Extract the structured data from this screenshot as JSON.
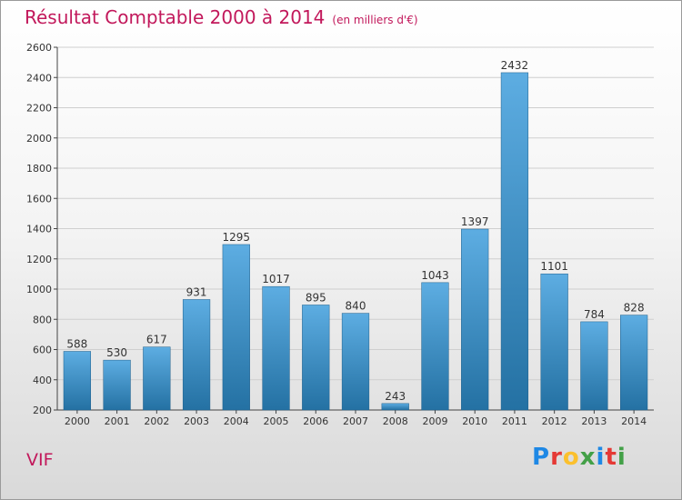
{
  "header": {
    "title": "Résultat Comptable 2000 à 2014",
    "subtitle": "(en milliers d'€)"
  },
  "commune": "VIF",
  "brand": [
    "P",
    "r",
    "o",
    "x",
    "i",
    "t",
    "i"
  ],
  "colors": {
    "title": "#c2185b",
    "bar_top": "#5dade2",
    "bar_bottom": "#2471a3"
  },
  "chart_data": {
    "type": "bar",
    "title": "Résultat Comptable 2000 à 2014",
    "subtitle": "(en milliers d'€)",
    "xlabel": "",
    "ylabel": "",
    "categories": [
      "2000",
      "2001",
      "2002",
      "2003",
      "2004",
      "2005",
      "2006",
      "2007",
      "2008",
      "2009",
      "2010",
      "2011",
      "2012",
      "2013",
      "2014"
    ],
    "values": [
      588,
      530,
      617,
      931,
      1295,
      1017,
      895,
      840,
      243,
      1043,
      1397,
      2432,
      1101,
      784,
      828
    ],
    "ylim": [
      200,
      2600
    ],
    "yticks": [
      200,
      400,
      600,
      800,
      1000,
      1200,
      1400,
      1600,
      1800,
      2000,
      2200,
      2400,
      2600
    ],
    "grid": true,
    "legend": "none"
  }
}
